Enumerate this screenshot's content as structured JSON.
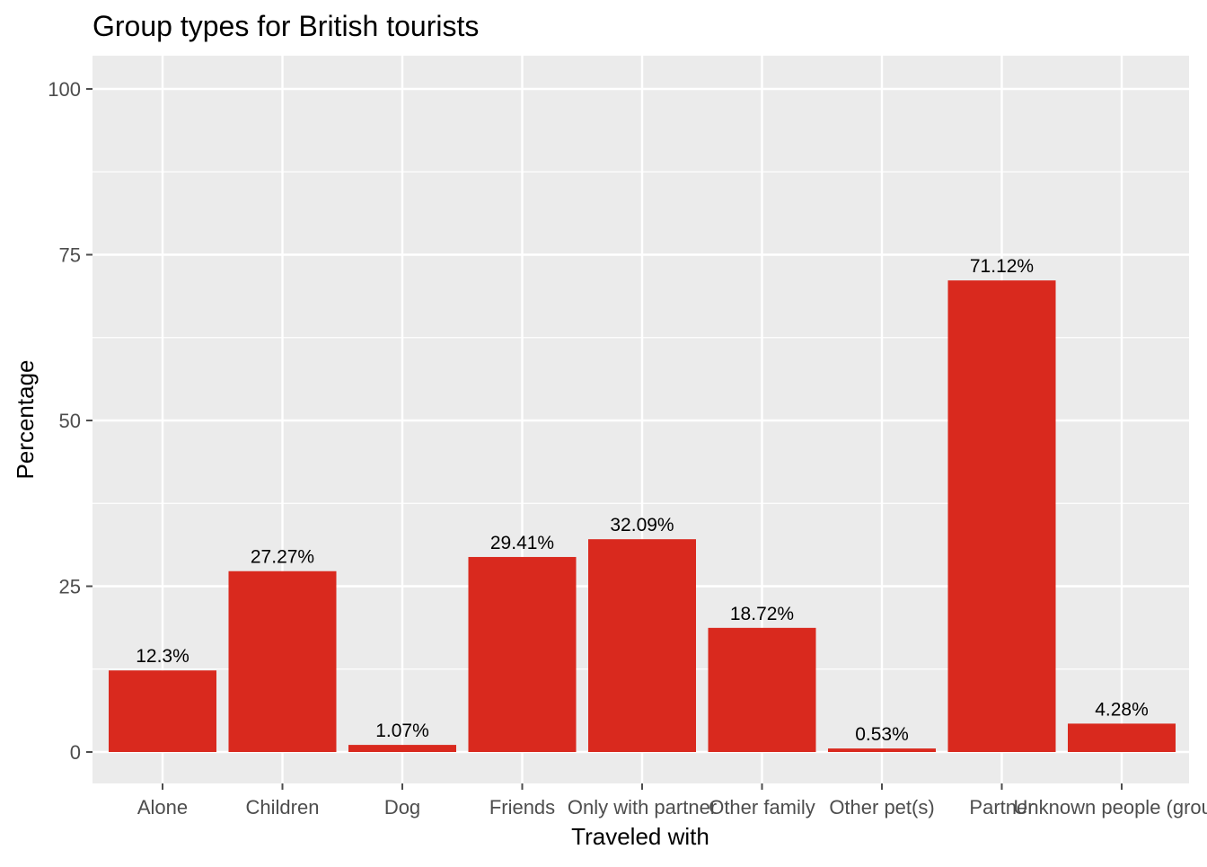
{
  "chart_data": {
    "type": "bar",
    "title": "Group types for British tourists",
    "xlabel": "Traveled with",
    "ylabel": "Percentage",
    "categories": [
      "Alone",
      "Children",
      "Dog",
      "Friends",
      "Only with partner",
      "Other family",
      "Other pet(s)",
      "Partner",
      "Unknown people (group)"
    ],
    "values": [
      12.3,
      27.27,
      1.07,
      29.41,
      32.09,
      18.72,
      0.53,
      71.12,
      4.28
    ],
    "value_labels": [
      "12.3%",
      "27.27%",
      "1.07%",
      "29.41%",
      "32.09%",
      "18.72%",
      "0.53%",
      "71.12%",
      "4.28%"
    ],
    "ylim": [
      -5,
      105
    ],
    "yticks": [
      0,
      25,
      50,
      75,
      100
    ],
    "ytick_labels": [
      "0",
      "25",
      "50",
      "75",
      "100"
    ],
    "grid": true,
    "legend": "none",
    "colors": {
      "bar": "#d9291e",
      "panel": "#ebebeb",
      "grid": "#ffffff",
      "tick": "#4d4d4d"
    }
  }
}
